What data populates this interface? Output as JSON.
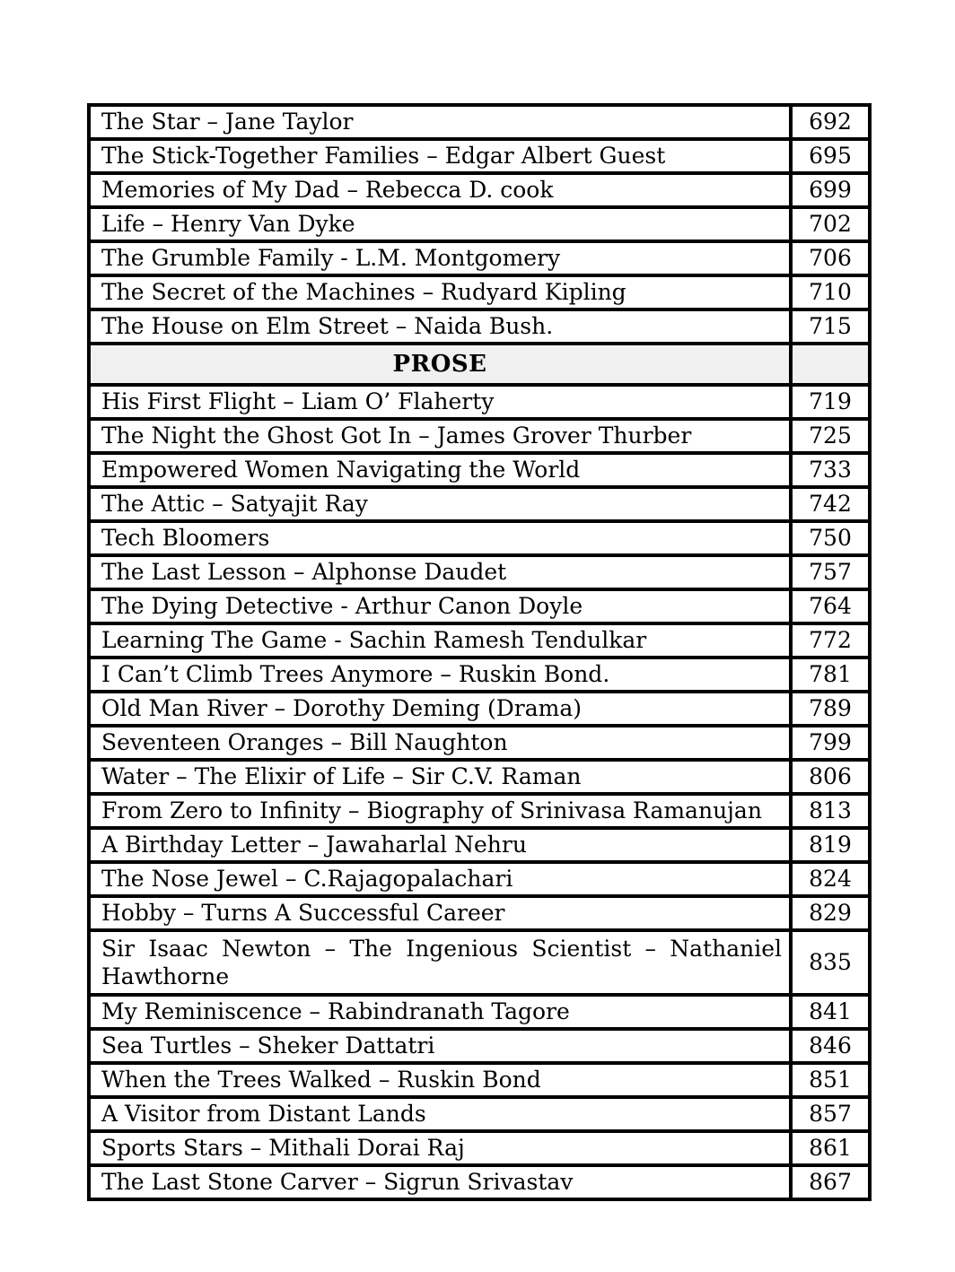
{
  "colors": {
    "border": "#000000",
    "section_header_bg": "#f0f0f0",
    "text": "#000000",
    "page_bg": "#ffffff"
  },
  "table": {
    "columns": [
      "title",
      "page_number"
    ],
    "rows": [
      {
        "kind": "entry",
        "title": "The Star – Jane Taylor",
        "page": "692"
      },
      {
        "kind": "entry",
        "title": "The Stick-Together Families – Edgar Albert Guest",
        "page": "695"
      },
      {
        "kind": "entry",
        "title": "Memories of My Dad – Rebecca D. cook",
        "page": "699"
      },
      {
        "kind": "entry",
        "title": "Life – Henry Van Dyke",
        "page": "702"
      },
      {
        "kind": "entry",
        "title": "The Grumble Family - L.M. Montgomery",
        "page": "706"
      },
      {
        "kind": "entry",
        "title": "The Secret of the Machines – Rudyard Kipling",
        "page": "710"
      },
      {
        "kind": "entry",
        "title": "The House on Elm Street – Naida Bush.",
        "page": "715"
      },
      {
        "kind": "section",
        "label": "PROSE"
      },
      {
        "kind": "entry",
        "title": "His First Flight – Liam O’ Flaherty",
        "page": "719"
      },
      {
        "kind": "entry",
        "title": "The Night the Ghost Got In – James Grover Thurber",
        "page": "725"
      },
      {
        "kind": "entry",
        "title": "Empowered Women Navigating the World",
        "page": "733"
      },
      {
        "kind": "entry",
        "title": "The Attic – Satyajit Ray",
        "page": "742"
      },
      {
        "kind": "entry",
        "title": "Tech Bloomers",
        "page": "750"
      },
      {
        "kind": "entry",
        "title": "The Last Lesson – Alphonse Daudet",
        "page": "757"
      },
      {
        "kind": "entry",
        "title": "The Dying Detective - Arthur Canon Doyle",
        "page": "764"
      },
      {
        "kind": "entry",
        "title": "Learning The Game - Sachin Ramesh Tendulkar",
        "page": "772"
      },
      {
        "kind": "entry",
        "title": "I Can’t Climb Trees Anymore – Ruskin Bond.",
        "page": "781"
      },
      {
        "kind": "entry",
        "title": "Old Man River – Dorothy Deming (Drama)",
        "page": "789"
      },
      {
        "kind": "entry",
        "title": "Seventeen Oranges – Bill Naughton",
        "page": "799"
      },
      {
        "kind": "entry",
        "title": "Water – The Elixir of Life – Sir C.V. Raman",
        "page": "806"
      },
      {
        "kind": "entry",
        "title": "From Zero to Infinity – Biography of Srinivasa Ramanujan",
        "page": "813"
      },
      {
        "kind": "entry",
        "title": "A Birthday Letter – Jawaharlal Nehru",
        "page": "819"
      },
      {
        "kind": "entry",
        "title": "The Nose Jewel – C.Rajagopalachari",
        "page": "824"
      },
      {
        "kind": "entry",
        "title": "Hobby – Turns A Successful Career",
        "page": "829"
      },
      {
        "kind": "entry",
        "title": "Sir Isaac Newton – The Ingenious Scientist – Nathaniel Hawthorne",
        "page": "835",
        "justify": true
      },
      {
        "kind": "entry",
        "title": "My Reminiscence – Rabindranath Tagore",
        "page": "841"
      },
      {
        "kind": "entry",
        "title": "Sea Turtles – Sheker Dattatri",
        "page": "846"
      },
      {
        "kind": "entry",
        "title": "When the Trees Walked – Ruskin Bond",
        "page": "851"
      },
      {
        "kind": "entry",
        "title": "A Visitor from Distant Lands",
        "page": "857"
      },
      {
        "kind": "entry",
        "title": "Sports Stars – Mithali Dorai Raj",
        "page": "861"
      },
      {
        "kind": "entry",
        "title": "The Last Stone Carver – Sigrun Srivastav",
        "page": "867"
      }
    ]
  }
}
